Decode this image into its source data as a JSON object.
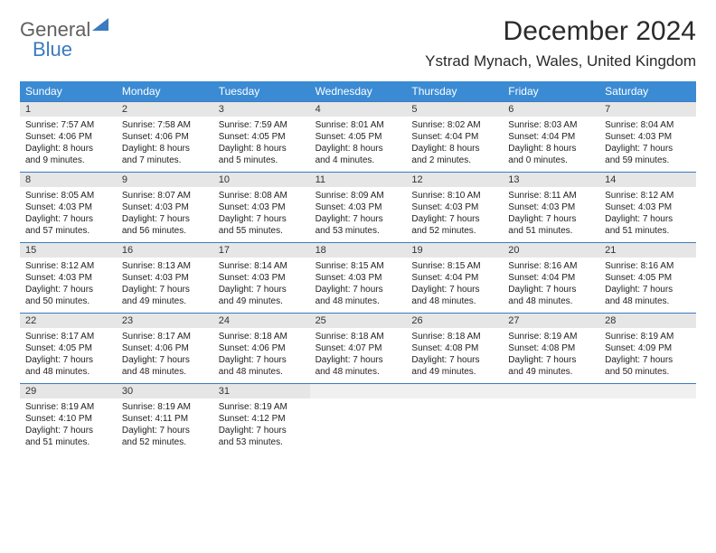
{
  "brand": {
    "part1": "General",
    "part2": "Blue"
  },
  "header": {
    "title": "December 2024",
    "location": "Ystrad Mynach, Wales, United Kingdom"
  },
  "colors": {
    "accent": "#3b8bd4",
    "border": "#3b7bbf",
    "day_bg": "#e6e6e6"
  },
  "day_names": [
    "Sunday",
    "Monday",
    "Tuesday",
    "Wednesday",
    "Thursday",
    "Friday",
    "Saturday"
  ],
  "weeks": [
    [
      {
        "n": "1",
        "sr": "7:57 AM",
        "ss": "4:06 PM",
        "dh": "8",
        "dm": "9"
      },
      {
        "n": "2",
        "sr": "7:58 AM",
        "ss": "4:06 PM",
        "dh": "8",
        "dm": "7"
      },
      {
        "n": "3",
        "sr": "7:59 AM",
        "ss": "4:05 PM",
        "dh": "8",
        "dm": "5"
      },
      {
        "n": "4",
        "sr": "8:01 AM",
        "ss": "4:05 PM",
        "dh": "8",
        "dm": "4"
      },
      {
        "n": "5",
        "sr": "8:02 AM",
        "ss": "4:04 PM",
        "dh": "8",
        "dm": "2"
      },
      {
        "n": "6",
        "sr": "8:03 AM",
        "ss": "4:04 PM",
        "dh": "8",
        "dm": "0"
      },
      {
        "n": "7",
        "sr": "8:04 AM",
        "ss": "4:03 PM",
        "dh": "7",
        "dm": "59"
      }
    ],
    [
      {
        "n": "8",
        "sr": "8:05 AM",
        "ss": "4:03 PM",
        "dh": "7",
        "dm": "57"
      },
      {
        "n": "9",
        "sr": "8:07 AM",
        "ss": "4:03 PM",
        "dh": "7",
        "dm": "56"
      },
      {
        "n": "10",
        "sr": "8:08 AM",
        "ss": "4:03 PM",
        "dh": "7",
        "dm": "55"
      },
      {
        "n": "11",
        "sr": "8:09 AM",
        "ss": "4:03 PM",
        "dh": "7",
        "dm": "53"
      },
      {
        "n": "12",
        "sr": "8:10 AM",
        "ss": "4:03 PM",
        "dh": "7",
        "dm": "52"
      },
      {
        "n": "13",
        "sr": "8:11 AM",
        "ss": "4:03 PM",
        "dh": "7",
        "dm": "51"
      },
      {
        "n": "14",
        "sr": "8:12 AM",
        "ss": "4:03 PM",
        "dh": "7",
        "dm": "51"
      }
    ],
    [
      {
        "n": "15",
        "sr": "8:12 AM",
        "ss": "4:03 PM",
        "dh": "7",
        "dm": "50"
      },
      {
        "n": "16",
        "sr": "8:13 AM",
        "ss": "4:03 PM",
        "dh": "7",
        "dm": "49"
      },
      {
        "n": "17",
        "sr": "8:14 AM",
        "ss": "4:03 PM",
        "dh": "7",
        "dm": "49"
      },
      {
        "n": "18",
        "sr": "8:15 AM",
        "ss": "4:03 PM",
        "dh": "7",
        "dm": "48"
      },
      {
        "n": "19",
        "sr": "8:15 AM",
        "ss": "4:04 PM",
        "dh": "7",
        "dm": "48"
      },
      {
        "n": "20",
        "sr": "8:16 AM",
        "ss": "4:04 PM",
        "dh": "7",
        "dm": "48"
      },
      {
        "n": "21",
        "sr": "8:16 AM",
        "ss": "4:05 PM",
        "dh": "7",
        "dm": "48"
      }
    ],
    [
      {
        "n": "22",
        "sr": "8:17 AM",
        "ss": "4:05 PM",
        "dh": "7",
        "dm": "48"
      },
      {
        "n": "23",
        "sr": "8:17 AM",
        "ss": "4:06 PM",
        "dh": "7",
        "dm": "48"
      },
      {
        "n": "24",
        "sr": "8:18 AM",
        "ss": "4:06 PM",
        "dh": "7",
        "dm": "48"
      },
      {
        "n": "25",
        "sr": "8:18 AM",
        "ss": "4:07 PM",
        "dh": "7",
        "dm": "48"
      },
      {
        "n": "26",
        "sr": "8:18 AM",
        "ss": "4:08 PM",
        "dh": "7",
        "dm": "49"
      },
      {
        "n": "27",
        "sr": "8:19 AM",
        "ss": "4:08 PM",
        "dh": "7",
        "dm": "49"
      },
      {
        "n": "28",
        "sr": "8:19 AM",
        "ss": "4:09 PM",
        "dh": "7",
        "dm": "50"
      }
    ],
    [
      {
        "n": "29",
        "sr": "8:19 AM",
        "ss": "4:10 PM",
        "dh": "7",
        "dm": "51"
      },
      {
        "n": "30",
        "sr": "8:19 AM",
        "ss": "4:11 PM",
        "dh": "7",
        "dm": "52"
      },
      {
        "n": "31",
        "sr": "8:19 AM",
        "ss": "4:12 PM",
        "dh": "7",
        "dm": "53"
      },
      null,
      null,
      null,
      null
    ]
  ],
  "labels": {
    "sunrise": "Sunrise:",
    "sunset": "Sunset:",
    "daylight": "Daylight:",
    "hours": "hours",
    "and": "and",
    "minutes": "minutes."
  }
}
